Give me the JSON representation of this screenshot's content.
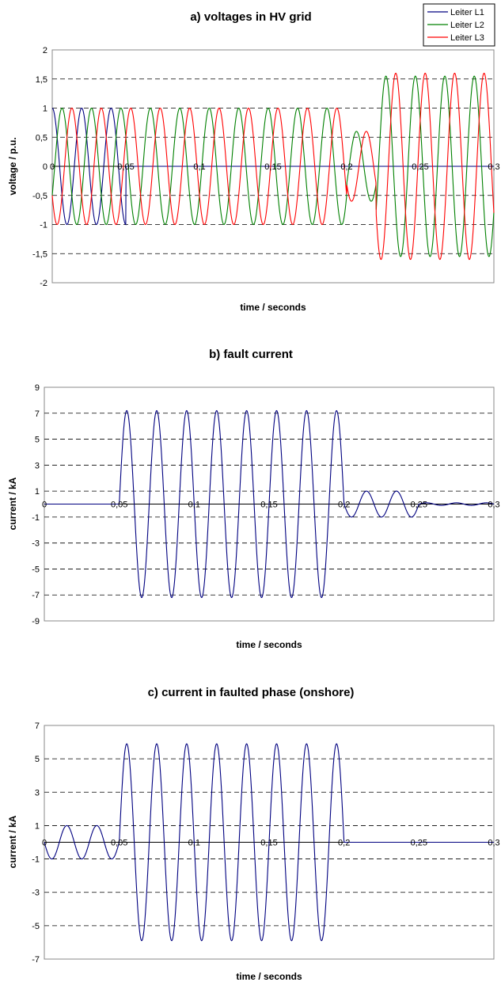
{
  "chart_data": [
    {
      "type": "line",
      "title": "a) voltages in HV grid",
      "xlabel": "time / seconds",
      "ylabel": "voltage / p.u.",
      "xlim": [
        0,
        0.3
      ],
      "ylim": [
        -2,
        2
      ],
      "x_ticks": [
        "0",
        "0,05",
        "0,1",
        "0,15",
        "0,2",
        "0,25",
        "0,3"
      ],
      "y_ticks": [
        "2",
        "1,5",
        "1",
        "0,5",
        "0",
        "-0,5",
        "-1",
        "-1,5",
        "-2"
      ],
      "grid": "horizontal dashed",
      "legend": "top-right",
      "series": [
        {
          "name": "Leiter L1",
          "color": "#000080",
          "phase_deg": 90,
          "amplitude_segments": [
            [
              0,
              0.05,
              1.0
            ],
            [
              0.05,
              0.3,
              0.0
            ]
          ]
        },
        {
          "name": "Leiter L2",
          "color": "#008000",
          "phase_deg": -30,
          "amplitude_segments": [
            [
              0,
              0.2,
              1.0
            ],
            [
              0.2,
              0.22,
              0.6
            ],
            [
              0.22,
              0.3,
              1.55
            ]
          ]
        },
        {
          "name": "Leiter L3",
          "color": "#ff0000",
          "phase_deg": 210,
          "amplitude_segments": [
            [
              0,
              0.2,
              1.0
            ],
            [
              0.2,
              0.22,
              0.6
            ],
            [
              0.22,
              0.3,
              1.6
            ]
          ]
        }
      ],
      "frequency_hz": 50
    },
    {
      "type": "line",
      "title": "b) fault current",
      "xlabel": "time / seconds",
      "ylabel": "current / kA",
      "xlim": [
        0,
        0.3
      ],
      "ylim": [
        -9,
        9
      ],
      "x_ticks": [
        "0",
        "0,05",
        "0,1",
        "0,15",
        "0,2",
        "0,25",
        "0,3"
      ],
      "y_ticks": [
        "9",
        "7",
        "5",
        "3",
        "1",
        "-1",
        "-3",
        "-5",
        "-7",
        "-9"
      ],
      "grid": "horizontal dashed",
      "series": [
        {
          "name": "",
          "color": "#000080",
          "phase_deg": 180,
          "amplitude_segments": [
            [
              0,
              0.05,
              0.0
            ],
            [
              0.05,
              0.2,
              7.2
            ],
            [
              0.2,
              0.25,
              1.0
            ],
            [
              0.25,
              0.3,
              0.1
            ]
          ]
        }
      ],
      "frequency_hz": 50
    },
    {
      "type": "line",
      "title": "c) current in faulted phase (onshore)",
      "xlabel": "time / seconds",
      "ylabel": "current / kA",
      "xlim": [
        0,
        0.3
      ],
      "ylim": [
        -7,
        7
      ],
      "x_ticks": [
        "0",
        "0,05",
        "0,1",
        "0,15",
        "0,2",
        "0,25",
        "0,3"
      ],
      "y_ticks": [
        "7",
        "5",
        "3",
        "1",
        "-1",
        "-3",
        "-5",
        "-7"
      ],
      "grid": "horizontal dashed",
      "series": [
        {
          "name": "",
          "color": "#000080",
          "phase_deg": 180,
          "amplitude_segments": [
            [
              0,
              0.05,
              1.0
            ],
            [
              0.05,
              0.2,
              5.9
            ],
            [
              0.2,
              0.3,
              0.0
            ]
          ]
        }
      ],
      "frequency_hz": 50
    }
  ]
}
